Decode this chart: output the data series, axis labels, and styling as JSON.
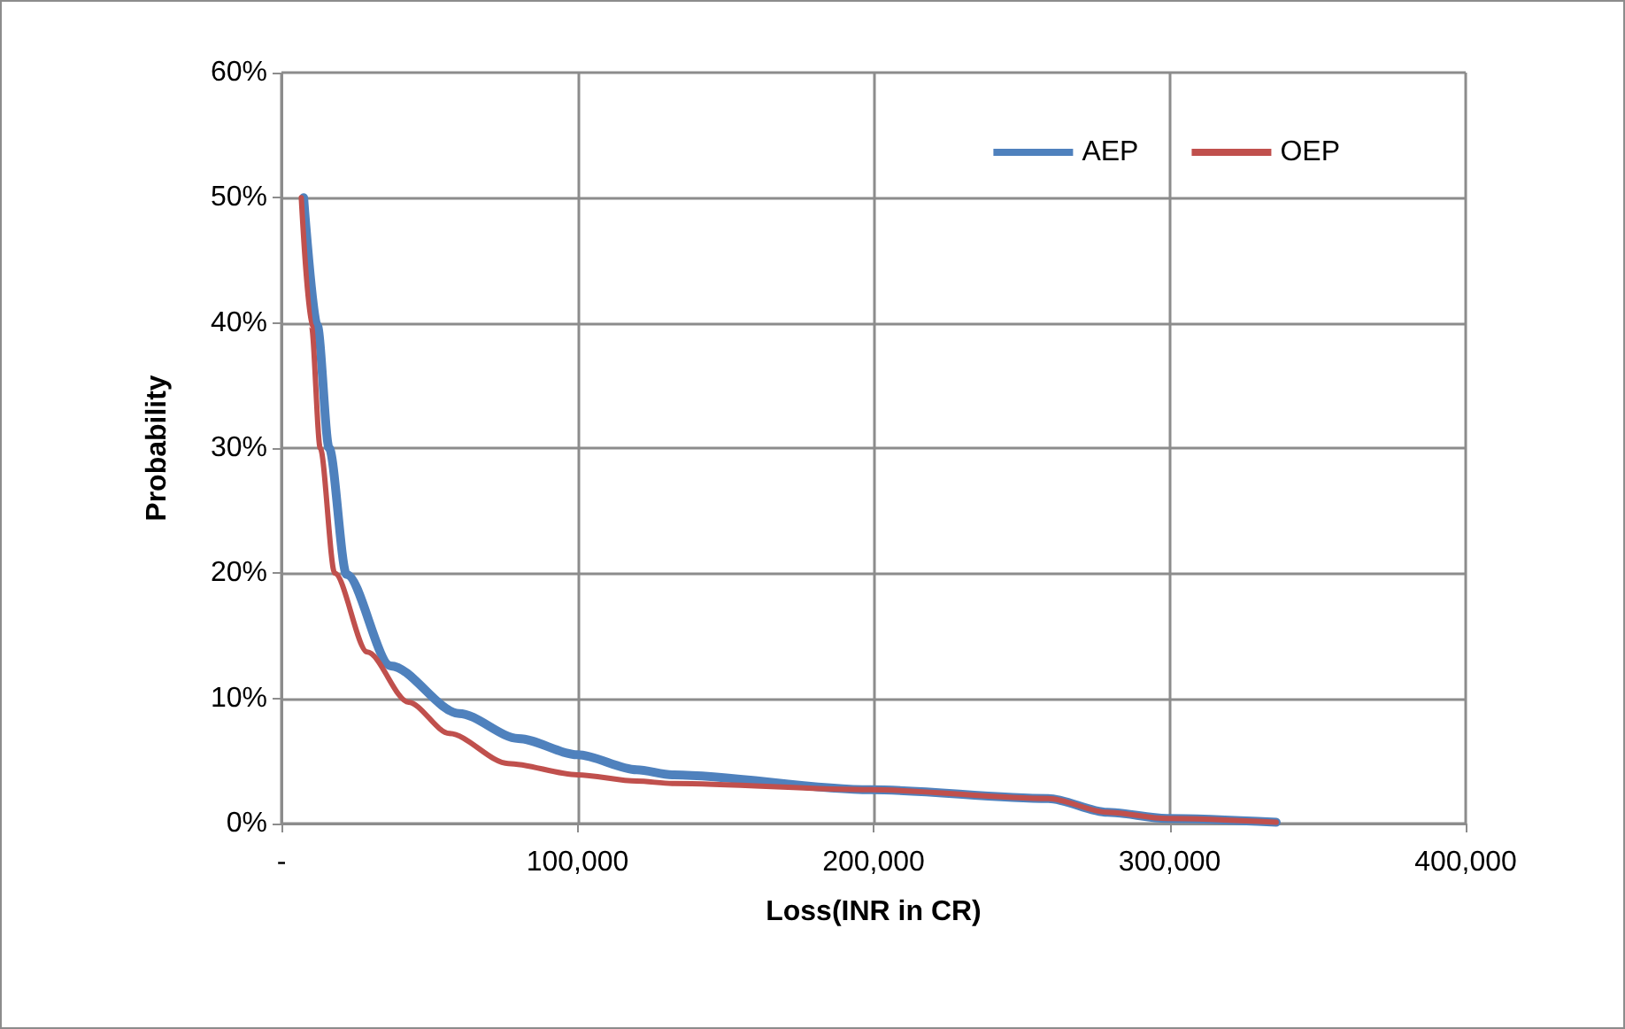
{
  "chart_data": {
    "type": "line",
    "xlabel": "Loss(INR in CR)",
    "ylabel": "Probability",
    "xlim": [
      0,
      400000
    ],
    "xticks": [
      {
        "value": 0,
        "label": "-"
      },
      {
        "value": 100000,
        "label": "100,000"
      },
      {
        "value": 200000,
        "label": "200,000"
      },
      {
        "value": 300000,
        "label": "300,000"
      },
      {
        "value": 400000,
        "label": "400,000"
      }
    ],
    "ylim": [
      0,
      60
    ],
    "yticks": [
      {
        "value": 0,
        "label": "0%"
      },
      {
        "value": 10,
        "label": "10%"
      },
      {
        "value": 20,
        "label": "20%"
      },
      {
        "value": 30,
        "label": "30%"
      },
      {
        "value": 40,
        "label": "40%"
      },
      {
        "value": 50,
        "label": "50%"
      },
      {
        "value": 60,
        "label": "60%"
      }
    ],
    "grid": true,
    "legend": "top right",
    "marker": "none",
    "line_style": "solid",
    "series": [
      {
        "name": "AEP",
        "color": "#4f81bd",
        "x": [
          7500,
          12100,
          16100,
          22000,
          36900,
          60000,
          80000,
          100000,
          120000,
          132000,
          199000,
          259000,
          279000,
          299000,
          336000
        ],
        "values": [
          50,
          39.8,
          30,
          19.9,
          12.6,
          8.8,
          6.8,
          5.5,
          4.3,
          3.9,
          2.7,
          2.0,
          0.9,
          0.4,
          0.1
        ]
      },
      {
        "name": "OEP",
        "color": "#c0504d",
        "x": [
          6700,
          10100,
          13100,
          18000,
          29000,
          42900,
          56700,
          76600,
          100000,
          120000,
          132000,
          199000,
          259000,
          279000,
          299000,
          336000
        ],
        "values": [
          50,
          39.8,
          30,
          20,
          13.7,
          9.7,
          7.2,
          4.8,
          3.9,
          3.4,
          3.2,
          2.7,
          2.0,
          0.9,
          0.4,
          0.1
        ]
      }
    ]
  }
}
